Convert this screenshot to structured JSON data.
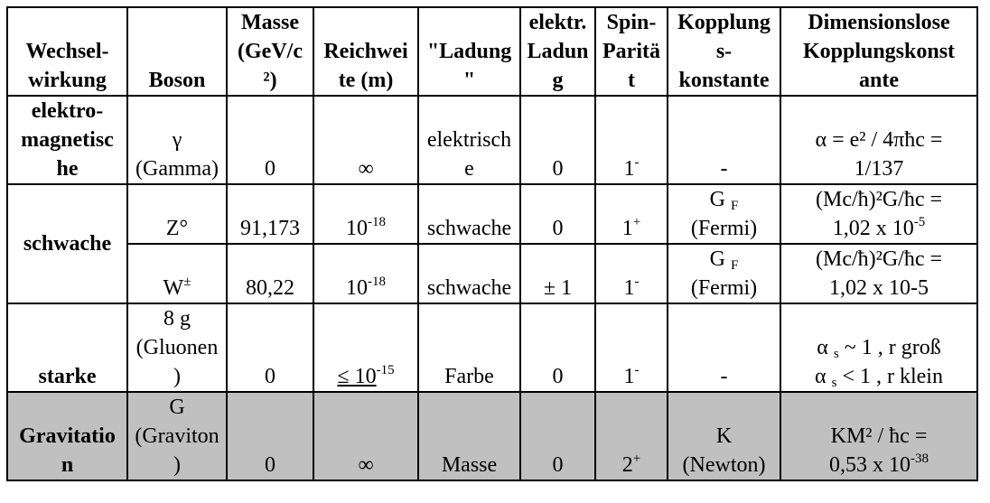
{
  "headers": [
    {
      "lines": [
        "Wechsel-",
        "wirkung"
      ]
    },
    {
      "lines": [
        "Boson"
      ]
    },
    {
      "lines": [
        "Masse",
        "(GeV/c",
        "²)"
      ]
    },
    {
      "lines": [
        "Reichwei",
        "te (m)"
      ]
    },
    {
      "lines": [
        "\"Ladung",
        "\""
      ]
    },
    {
      "lines": [
        "elektr.",
        "Ladun",
        "g"
      ]
    },
    {
      "lines": [
        "Spin-",
        "Paritä",
        "t"
      ]
    },
    {
      "lines": [
        "Kopplung",
        "s-",
        "konstante"
      ]
    },
    {
      "lines": [
        "Dimensionslose",
        "Kopplungskonst",
        "ante"
      ]
    }
  ],
  "rows": {
    "elektro": {
      "wechselwirkung": [
        "elektro-",
        "magnetisc",
        "he"
      ],
      "boson": [
        "γ",
        "(Gamma)"
      ],
      "masse": "0",
      "reichweite": "∞",
      "ladung": [
        "elektrisch",
        "e"
      ],
      "elektr_ladung": "0",
      "spin_base": "1",
      "spin_sup": "-",
      "kopplung": "-",
      "dimlos": [
        "α = e² / 4πħc  =",
        "1/137"
      ]
    },
    "z": {
      "wechselwirkung": "schwache",
      "boson": "Z°",
      "masse": "91,173",
      "reichweite_base": "10",
      "reichweite_sup": "-18",
      "ladung": "schwache",
      "elektr_ladung": "0",
      "spin_base": "1",
      "spin_sup": "+",
      "kopplung_g": "G",
      "kopplung_sub": "F",
      "kopplung_name": "(Fermi)",
      "dimlos_1": "(Mc/ħ)²G/ħc  =",
      "dimlos_2_base": "1,02 x 10",
      "dimlos_2_sup": "-5"
    },
    "w": {
      "boson": "W",
      "boson_sup": "±",
      "masse": "80,22",
      "reichweite_base": "10",
      "reichweite_sup": "-18",
      "ladung": "schwache",
      "elektr_ladung": "± 1",
      "spin_base": "1",
      "spin_sup": "-",
      "kopplung_g": "G",
      "kopplung_sub": "F",
      "kopplung_name": "(Fermi)",
      "dimlos_1": "(Mc/ħ)²G/ħc  =",
      "dimlos_2": "1,02 x 10-5"
    },
    "starke": {
      "wechselwirkung": "starke",
      "boson": [
        "8 g",
        "(Gluonen",
        ")"
      ],
      "masse": "0",
      "reichweite_base": "≤ 10",
      "reichweite_sup": "-15",
      "ladung": "Farbe",
      "elektr_ladung": "0",
      "spin_base": "1",
      "spin_sup": "-",
      "kopplung": "-",
      "dimlos_1_a": "α",
      "dimlos_1_sub": "s",
      "dimlos_1_b": " ~ 1 , r groß",
      "dimlos_2_a": "α",
      "dimlos_2_sub": "s",
      "dimlos_2_b": " < 1 , r klein"
    },
    "grav": {
      "wechselwirkung": [
        "Gravitatio",
        "n"
      ],
      "boson": [
        "G",
        "(Graviton",
        ")"
      ],
      "masse": "0",
      "reichweite": "∞",
      "ladung": "Masse",
      "elektr_ladung": "0",
      "spin_base": "2",
      "spin_sup": "+",
      "kopplung": [
        "K",
        "(Newton)"
      ],
      "dimlos_1": "KM² / ħc  =",
      "dimlos_2_base": "0,53 x 10",
      "dimlos_2_sup": "-38"
    }
  },
  "colors": {
    "gravitation_row_bg": "#c0c0c0",
    "border": "#000000"
  }
}
